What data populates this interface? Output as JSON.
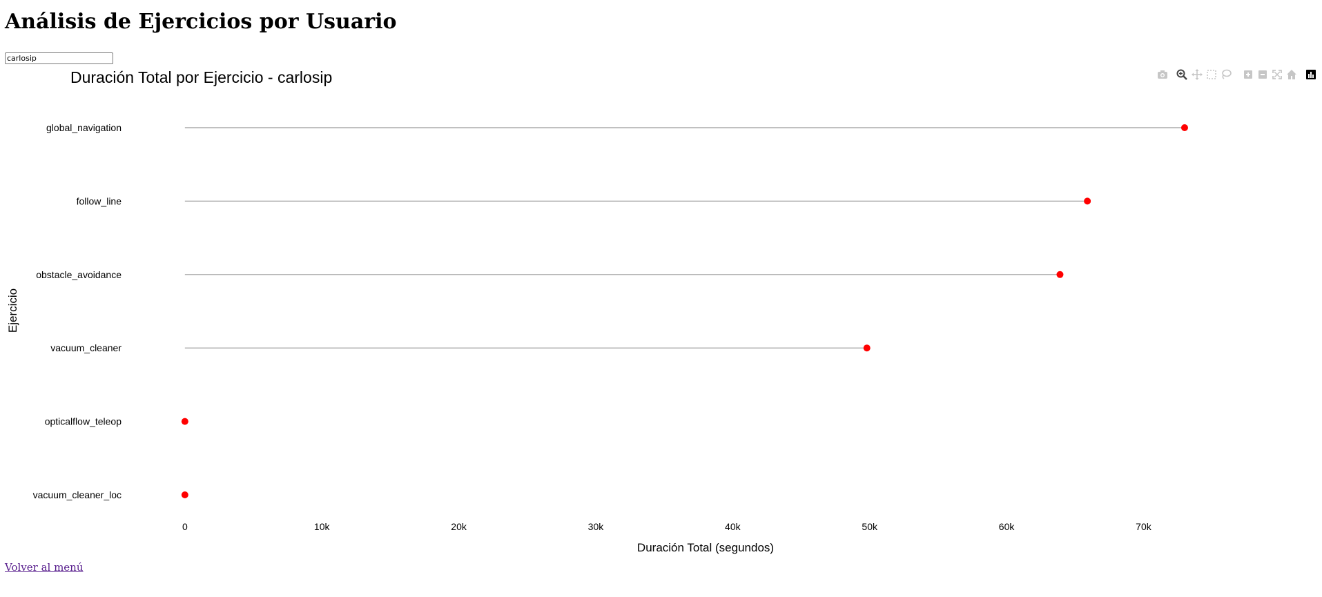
{
  "page": {
    "title": "Análisis de Ejercicios por Usuario",
    "back_link": "Volver al menú"
  },
  "search": {
    "value": "carlosip"
  },
  "modebar": {
    "buttons": [
      "camera-icon",
      "zoom-icon",
      "pan-icon",
      "box-select-icon",
      "lasso-icon",
      "zoom-in-icon",
      "zoom-out-icon",
      "autoscale-icon",
      "reset-axes-icon",
      "plotly-logo-icon"
    ]
  },
  "colors": {
    "marker": "#ff0000",
    "stem": "#9a9a9a"
  },
  "chart_data": {
    "type": "scatter",
    "style": "lollipop",
    "title": "Duración Total por Ejercicio - carlosip",
    "xlabel": "Duración Total (segundos)",
    "ylabel": "Ejercicio",
    "categories": [
      "global_navigation",
      "follow_line",
      "obstacle_avoidance",
      "vacuum_cleaner",
      "opticalflow_teleop",
      "vacuum_cleaner_loc"
    ],
    "values": [
      73000,
      65900,
      63900,
      49800,
      0,
      0
    ],
    "xlim": [
      -1000,
      79000
    ],
    "xticks": [
      0,
      10000,
      20000,
      30000,
      40000,
      50000,
      60000,
      70000
    ],
    "xtick_labels": [
      "0",
      "10k",
      "20k",
      "30k",
      "40k",
      "50k",
      "60k",
      "70k"
    ],
    "grid": false,
    "legend": false
  }
}
